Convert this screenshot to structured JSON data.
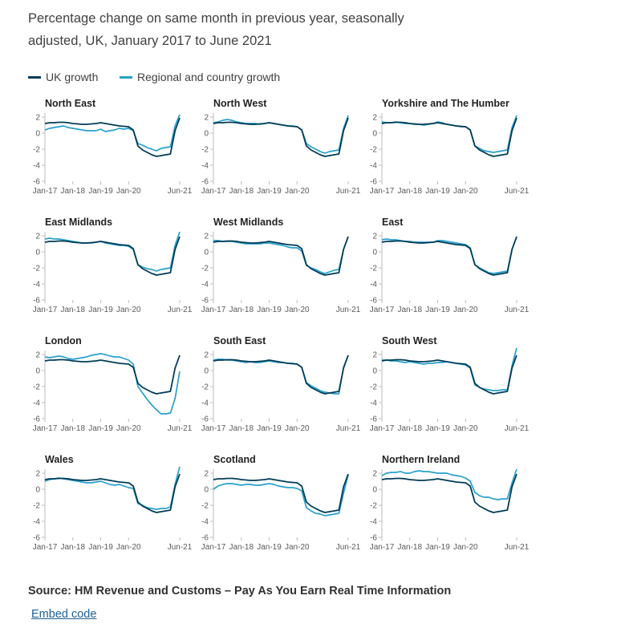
{
  "header": {
    "subtitle": "Percentage change on same month in previous year, seasonally adjusted, UK, January 2017 to June 2021"
  },
  "legend": {
    "items": [
      {
        "label": "UK growth",
        "color": "#003c57"
      },
      {
        "label": "Regional and country growth",
        "color": "#27a0cc"
      }
    ]
  },
  "chart_data": {
    "type": "line",
    "layout": "small-multiples",
    "x": [
      "Jan-17",
      "Mar-17",
      "May-17",
      "Jul-17",
      "Sep-17",
      "Nov-17",
      "Jan-18",
      "Mar-18",
      "May-18",
      "Jul-18",
      "Sep-18",
      "Nov-18",
      "Jan-19",
      "Mar-19",
      "May-19",
      "Jul-19",
      "Sep-19",
      "Nov-19",
      "Jan-20",
      "Mar-20",
      "Apr-20",
      "May-20",
      "Jul-20",
      "Sep-20",
      "Nov-20",
      "Jan-21",
      "Mar-21",
      "Apr-21",
      "May-21",
      "Jun-21"
    ],
    "x_tick_labels": [
      "Jan-17",
      "Jan-18",
      "Jan-19",
      "Jan-20",
      "Jun-21"
    ],
    "ylim": [
      -6,
      2.5
    ],
    "y_ticks": [
      2,
      0,
      -2,
      -4,
      -6
    ],
    "series_names": [
      "UK growth",
      "Regional and country growth"
    ],
    "uk_growth": [
      1.2,
      1.3,
      1.3,
      1.35,
      1.35,
      1.3,
      1.2,
      1.15,
      1.1,
      1.1,
      1.15,
      1.2,
      1.3,
      1.2,
      1.1,
      1.0,
      0.9,
      0.85,
      0.8,
      0.4,
      -1.6,
      -2.1,
      -2.4,
      -2.7,
      -2.9,
      -2.8,
      -2.7,
      -2.6,
      0.3,
      1.9
    ],
    "panels": [
      {
        "name": "North East",
        "regional": [
          0.4,
          0.6,
          0.7,
          0.8,
          0.9,
          0.7,
          0.6,
          0.5,
          0.4,
          0.3,
          0.3,
          0.3,
          0.5,
          0.2,
          0.3,
          0.4,
          0.6,
          0.5,
          0.6,
          0.3,
          -1.3,
          -1.5,
          -1.8,
          -2.0,
          -2.2,
          -1.9,
          -1.8,
          -1.7,
          0.9,
          2.3
        ]
      },
      {
        "name": "North West",
        "regional": [
          1.3,
          1.4,
          1.6,
          1.7,
          1.6,
          1.4,
          1.3,
          1.2,
          1.2,
          1.2,
          1.1,
          1.2,
          1.3,
          1.2,
          1.1,
          1.0,
          0.9,
          0.9,
          0.8,
          0.4,
          -1.3,
          -1.7,
          -2.0,
          -2.3,
          -2.5,
          -2.3,
          -2.2,
          -2.1,
          0.6,
          2.2
        ]
      },
      {
        "name": "Yorkshire and The Humber",
        "regional": [
          1.4,
          1.3,
          1.3,
          1.4,
          1.3,
          1.2,
          1.2,
          1.1,
          1.1,
          1.0,
          1.1,
          1.2,
          1.4,
          1.3,
          1.1,
          1.0,
          0.9,
          0.8,
          0.8,
          0.4,
          -1.6,
          -1.9,
          -2.2,
          -2.3,
          -2.4,
          -2.3,
          -2.2,
          -2.1,
          0.7,
          2.2
        ]
      },
      {
        "name": "East Midlands",
        "regional": [
          1.6,
          1.7,
          1.6,
          1.6,
          1.5,
          1.4,
          1.3,
          1.2,
          1.1,
          1.1,
          1.1,
          1.2,
          1.3,
          1.1,
          1.0,
          0.9,
          0.8,
          0.8,
          0.7,
          0.3,
          -1.6,
          -1.9,
          -2.1,
          -2.2,
          -2.4,
          -2.2,
          -2.1,
          -2.0,
          0.8,
          2.5
        ]
      },
      {
        "name": "West Midlands",
        "regional": [
          1.4,
          1.4,
          1.3,
          1.3,
          1.3,
          1.2,
          1.1,
          1.0,
          1.0,
          1.0,
          1.0,
          1.1,
          1.1,
          1.0,
          0.9,
          0.8,
          0.6,
          0.5,
          0.5,
          0.1,
          -1.7,
          -2.0,
          -2.2,
          -2.5,
          -2.7,
          -2.5,
          -2.3,
          -2.2,
          0.3,
          1.9
        ]
      },
      {
        "name": "East",
        "regional": [
          1.5,
          1.6,
          1.5,
          1.5,
          1.4,
          1.3,
          1.3,
          1.2,
          1.2,
          1.2,
          1.2,
          1.2,
          1.4,
          1.4,
          1.3,
          1.2,
          1.1,
          1.0,
          0.9,
          0.5,
          -1.6,
          -2.0,
          -2.3,
          -2.6,
          -2.7,
          -2.6,
          -2.5,
          -2.4,
          0.3,
          1.9
        ]
      },
      {
        "name": "London",
        "regional": [
          1.7,
          1.6,
          1.7,
          1.8,
          1.7,
          1.5,
          1.4,
          1.5,
          1.6,
          1.7,
          1.9,
          2.0,
          2.1,
          2.0,
          1.8,
          1.7,
          1.7,
          1.5,
          1.3,
          0.8,
          -2.0,
          -2.8,
          -3.6,
          -4.3,
          -4.9,
          -5.4,
          -5.4,
          -5.3,
          -3.5,
          -0.1
        ]
      },
      {
        "name": "South East",
        "regional": [
          1.3,
          1.4,
          1.4,
          1.3,
          1.3,
          1.2,
          1.1,
          1.0,
          1.1,
          1.0,
          1.0,
          1.1,
          1.2,
          1.1,
          1.0,
          1.0,
          0.9,
          0.9,
          0.8,
          0.4,
          -1.5,
          -1.9,
          -2.2,
          -2.5,
          -2.7,
          -2.8,
          -2.9,
          -2.9,
          0.4,
          1.9
        ]
      },
      {
        "name": "South West",
        "regional": [
          1.3,
          1.3,
          1.2,
          1.2,
          1.1,
          1.0,
          1.1,
          1.0,
          0.9,
          0.8,
          0.9,
          0.9,
          1.0,
          1.0,
          1.1,
          1.0,
          0.9,
          0.8,
          0.7,
          0.3,
          -1.8,
          -2.1,
          -2.3,
          -2.4,
          -2.5,
          -2.5,
          -2.4,
          -2.4,
          0.6,
          2.8
        ]
      },
      {
        "name": "Wales",
        "regional": [
          1.0,
          1.2,
          1.3,
          1.4,
          1.3,
          1.2,
          1.1,
          1.0,
          0.9,
          0.8,
          0.8,
          0.9,
          1.0,
          0.8,
          0.6,
          0.5,
          0.6,
          0.4,
          0.2,
          0.1,
          -1.8,
          -2.0,
          -2.3,
          -2.4,
          -2.5,
          -2.4,
          -2.4,
          -2.2,
          0.6,
          2.8
        ]
      },
      {
        "name": "Scotland",
        "regional": [
          0.0,
          0.4,
          0.6,
          0.7,
          0.7,
          0.6,
          0.5,
          0.6,
          0.6,
          0.5,
          0.5,
          0.6,
          0.7,
          0.6,
          0.4,
          0.3,
          0.2,
          0.2,
          0.1,
          -0.2,
          -2.3,
          -2.7,
          -3.0,
          -3.1,
          -3.3,
          -3.2,
          -3.1,
          -3.0,
          -0.5,
          1.8
        ]
      },
      {
        "name": "Northern Ireland",
        "regional": [
          1.7,
          2.0,
          2.1,
          2.1,
          2.2,
          2.0,
          2.0,
          2.2,
          2.3,
          2.2,
          2.2,
          2.1,
          2.0,
          2.0,
          2.0,
          1.8,
          1.7,
          1.6,
          1.4,
          1.0,
          -0.4,
          -0.8,
          -1.0,
          -1.0,
          -1.2,
          -1.3,
          -1.2,
          -1.2,
          0.8,
          2.5
        ]
      }
    ]
  },
  "footer": {
    "source": "Source: HM Revenue and Customs – Pay As You Earn Real Time Information",
    "embed_label": "Embed code"
  }
}
